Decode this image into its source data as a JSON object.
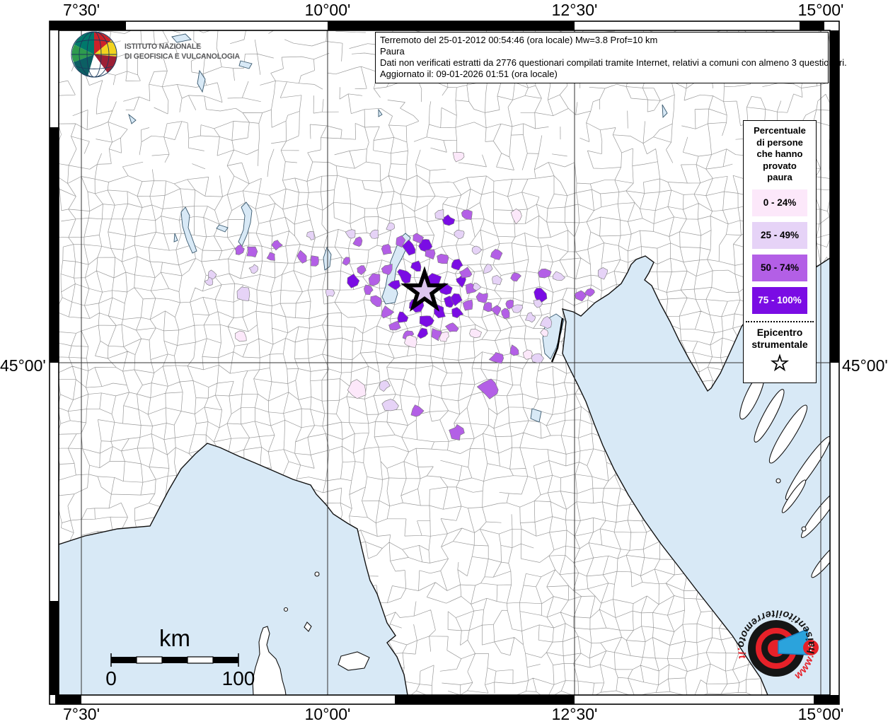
{
  "coordinates": {
    "top": [
      "7°30'",
      "10°00'",
      "12°30'",
      "15°00'"
    ],
    "bottom": [
      "7°30'",
      "10°00'",
      "12°30'",
      "15°00'"
    ],
    "left": "45°00'",
    "right": "45°00'"
  },
  "info_box": {
    "lines": [
      "Terremoto del 25-01-2012 00:54:46 (ora locale) Mw=3.8 Prof=10 km",
      "Paura",
      "Dati non verificati estratti da 2776 questionari compilati tramite Internet, relativi a comuni con almeno 3 questionari.",
      "Aggiornato il: 09-01-2026 01:51 (ora locale)"
    ]
  },
  "ingv": {
    "name_line1": "ISTITUTO NAZIONALE",
    "name_line2": "DI GEOFISICA E VULCANOLOGIA"
  },
  "legend": {
    "title_lines": [
      "Percentuale",
      "di persone",
      "che hanno",
      "provato",
      "paura"
    ],
    "classes": [
      {
        "label": "0 - 24%",
        "color": "#fce8fa",
        "text_color": "#000000"
      },
      {
        "label": "25 - 49%",
        "color": "#e6d3f7",
        "text_color": "#000000"
      },
      {
        "label": "50 - 74%",
        "color": "#b35fe6",
        "text_color": "#000000"
      },
      {
        "label": "75 - 100%",
        "color": "#7a0ce4",
        "text_color": "#ffffff"
      }
    ],
    "epicenter_line1": "Epicentro",
    "epicenter_line2": "strumentale"
  },
  "scale_bar": {
    "unit": "km",
    "min": "0",
    "max": "100"
  },
  "site_logo": {
    "www": "www.",
    "name": "haisentitoilterremoto",
    "tld": ".it",
    "mark": "?"
  },
  "map_colors": {
    "sea": "#d8e9f6",
    "land": "#ffffff",
    "boundary": "#9a9a9a",
    "grid": "#333333",
    "coast": "#111111",
    "accent_red": "#e62129",
    "accent_blue": "#2ba3dc"
  }
}
